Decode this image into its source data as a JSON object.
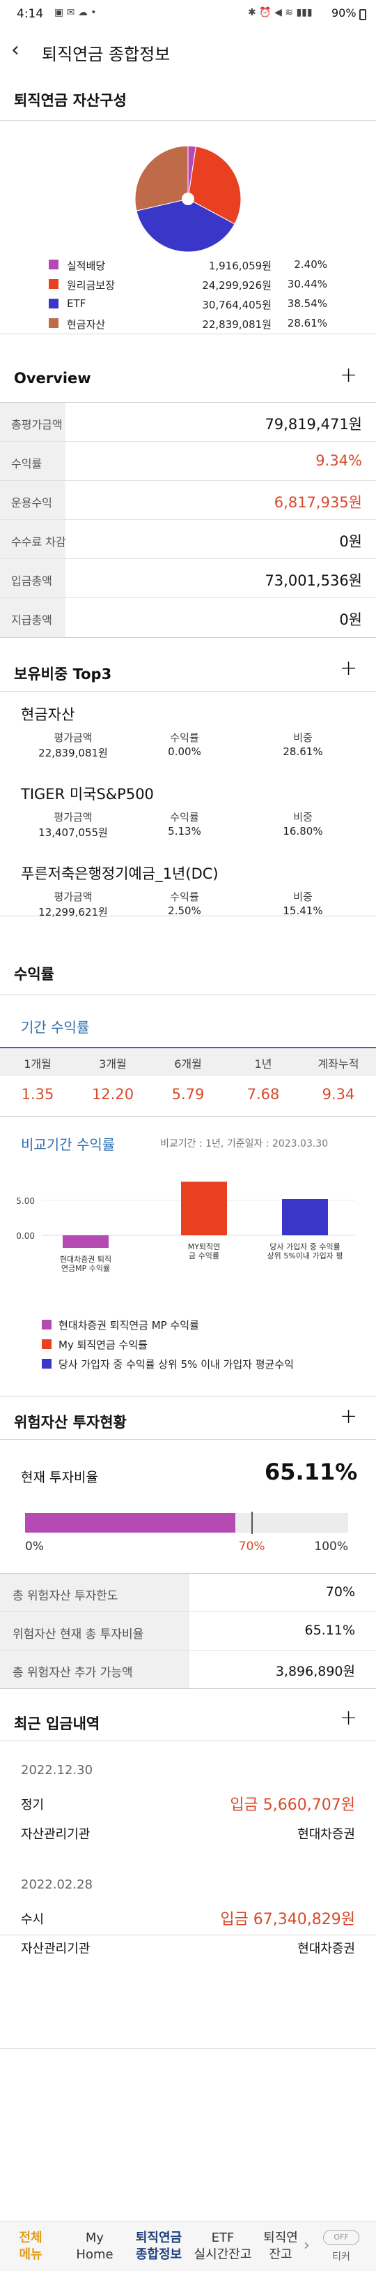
{
  "status_bar": {
    "time": "4:14",
    "battery": "90%"
  },
  "header": {
    "title": "퇴직연금 종합정보"
  },
  "asset": {
    "title": "퇴직연금 자산구성",
    "items": [
      {
        "name": "실적배당",
        "amount": "1,916,059원",
        "pct": "2.40%",
        "color": "#b64ab4",
        "value": 2.4
      },
      {
        "name": "원리금보장",
        "amount": "24,299,926원",
        "pct": "30.44%",
        "color": "#e84020",
        "value": 30.44
      },
      {
        "name": "ETF",
        "amount": "30,764,405원",
        "pct": "38.54%",
        "color": "#3a36c8",
        "value": 38.54
      },
      {
        "name": "현금자산",
        "amount": "22,839,081원",
        "pct": "28.61%",
        "color": "#bf6a48",
        "value": 28.61
      }
    ]
  },
  "overview": {
    "title": "Overview",
    "rows": [
      {
        "label": "총평가금액",
        "value": "79,819,471원"
      },
      {
        "label": "수익률",
        "value": "9.34%"
      },
      {
        "label": "운용수익",
        "value": "6,817,935원"
      },
      {
        "label": "수수료 차감",
        "value": "0원"
      },
      {
        "label": "입금총액",
        "value": "73,001,536원"
      },
      {
        "label": "지급총액",
        "value": "0원"
      }
    ]
  },
  "top3": {
    "title": "보유비중 Top3",
    "h_eval": "평가금액",
    "h_ret": "수익률",
    "h_weight": "비중",
    "items": [
      {
        "name": "현금자산",
        "eval": "22,839,081원",
        "ret": "0.00%",
        "weight": "28.61%"
      },
      {
        "name": "TIGER 미국S&P500",
        "eval": "13,407,055원",
        "ret": "5.13%",
        "weight": "16.80%"
      },
      {
        "name": "푸른저축은행정기예금_1년(DC)",
        "eval": "12,299,621원",
        "ret": "2.50%",
        "weight": "15.41%"
      }
    ]
  },
  "returns": {
    "title": "수익률",
    "period_title": "기간 수익률",
    "headers": [
      "1개월",
      "3개월",
      "6개월",
      "1년",
      "계좌누적"
    ],
    "values": [
      "1.35",
      "12.20",
      "5.79",
      "7.68",
      "9.34"
    ],
    "compare_title": "비교기간 수익률",
    "compare_note": "비교기간 : 1년, 기준일자 : 2023.03.30"
  },
  "chart_data": {
    "type": "bar",
    "categories": [
      "현대차증권 퇴직연금MP 수익률",
      "MY퇴직연금 수익률",
      "당사 가입자 중 수익률 상위 5%이내 가입자 평"
    ],
    "values": [
      -1.8,
      7.68,
      5.2
    ],
    "colors": [
      "#b64ab4",
      "#e84020",
      "#3a36c8"
    ],
    "yticks": [
      "5.00",
      "0.00"
    ],
    "ylim": [
      -2,
      9
    ],
    "legend": [
      "현대차증권 퇴직연금 MP 수익률",
      "My 퇴직연금 수익률",
      "당사 가입자 중 수익률 상위 5% 이내 가입자 평균수익"
    ]
  },
  "risk": {
    "title": "위험자산 투자현황",
    "current_label": "현재 투자비율",
    "current_value": "65.11%",
    "bar_fill": 65.11,
    "bar_limit": 70,
    "scale": [
      "0%",
      "70%",
      "100%"
    ],
    "rows": [
      {
        "label": "총 위험자산 투자한도",
        "value": "70%"
      },
      {
        "label": "위험자산 현재 총 투자비율",
        "value": "65.11%"
      },
      {
        "label": "총 위험자산 추가 가능액",
        "value": "3,896,890원"
      }
    ]
  },
  "deposits": {
    "title": "최근 입금내역",
    "items": [
      {
        "date": "2022.12.30",
        "type": "정기",
        "amount": "입금 5,660,707원",
        "inst_label": "자산관리기관",
        "inst": "현대차증권"
      },
      {
        "date": "2022.02.28",
        "type": "수시",
        "amount": "입금 67,340,829원",
        "inst_label": "자산관리기관",
        "inst": "현대차증권"
      }
    ]
  },
  "nav": {
    "items": [
      {
        "l1": "전체",
        "l2": "메뉴"
      },
      {
        "l1": "My",
        "l2": "Home"
      },
      {
        "l1": "퇴직연금",
        "l2": "종합정보"
      },
      {
        "l1": "ETF",
        "l2": "실시간잔고"
      },
      {
        "l1": "퇴직연",
        "l2": "잔고"
      }
    ],
    "toggle": "OFF",
    "toggle_label": "티커"
  }
}
